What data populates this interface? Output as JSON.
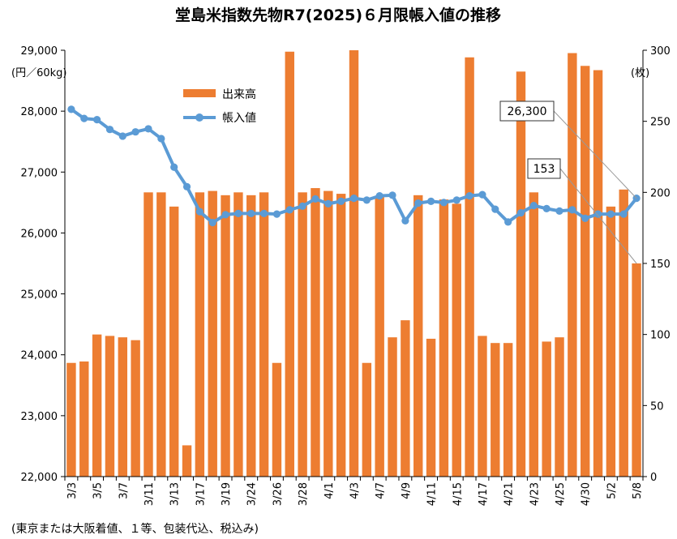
{
  "chart_data": {
    "type": "bar+line",
    "title": "堂島米指数先物R7(2025)６月限帳入値の推移",
    "left_unit": "(円／60kg)",
    "right_unit": "(枚)",
    "footnote": "(東京または大阪着値、１等、包装代込、税込み)",
    "left_axis": {
      "min": 22000,
      "max": 29000,
      "step": 1000,
      "tick_labels": [
        "22,000",
        "23,000",
        "24,000",
        "25,000",
        "26,000",
        "27,000",
        "28,000",
        "29,000"
      ]
    },
    "right_axis": {
      "min": 0,
      "max": 300,
      "step": 50,
      "tick_labels": [
        "0",
        "50",
        "100",
        "150",
        "200",
        "250",
        "300"
      ]
    },
    "x_tick_labels": [
      "3/3",
      "3/5",
      "3/7",
      "3/11",
      "3/13",
      "3/17",
      "3/19",
      "3/24",
      "3/26",
      "3/28",
      "4/1",
      "4/3",
      "4/7",
      "4/9",
      "4/11",
      "4/15",
      "4/17",
      "4/21",
      "4/23",
      "4/25",
      "4/30",
      "5/2",
      "5/8"
    ],
    "dates": [
      "3/3",
      "3/4",
      "3/5",
      "3/6",
      "3/7",
      "3/10",
      "3/11",
      "3/12",
      "3/13",
      "3/14",
      "3/17",
      "3/18",
      "3/19",
      "3/21",
      "3/24",
      "3/25",
      "3/26",
      "3/27",
      "3/28",
      "3/31",
      "4/1",
      "4/2",
      "4/3",
      "4/4",
      "4/7",
      "4/8",
      "4/9",
      "4/10",
      "4/11",
      "4/14",
      "4/15",
      "4/16",
      "4/17",
      "4/18",
      "4/21",
      "4/22",
      "4/23",
      "4/24",
      "4/25",
      "4/28",
      "4/30",
      "5/1",
      "5/2",
      "5/7",
      "5/8"
    ],
    "series": [
      {
        "name": "出来高",
        "type": "bar",
        "axis": "right",
        "color": "#ED7D31",
        "values": [
          80,
          81,
          100,
          99,
          98,
          96,
          200,
          200,
          190,
          22,
          200,
          201,
          198,
          200,
          198,
          200,
          80,
          299,
          200,
          203,
          201,
          199,
          300,
          80,
          197,
          98,
          110,
          198,
          97,
          195,
          192,
          295,
          99,
          94,
          94,
          285,
          200,
          95,
          98,
          298,
          289,
          286,
          190,
          202,
          150
        ]
      },
      {
        "name": "帳入値",
        "type": "line",
        "axis": "left",
        "color": "#5B9BD5",
        "values": [
          28030,
          27880,
          27860,
          27700,
          27590,
          27660,
          27710,
          27550,
          27080,
          26760,
          26350,
          26170,
          26300,
          26320,
          26320,
          26320,
          26310,
          26380,
          26440,
          26560,
          26480,
          26520,
          26570,
          26540,
          26610,
          26620,
          26200,
          26490,
          26520,
          26500,
          26540,
          26610,
          26630,
          26390,
          26180,
          26330,
          26450,
          26400,
          26360,
          26380,
          26240,
          26310,
          26310,
          26310,
          26570
        ]
      }
    ],
    "legend": {
      "position": "top-left inside",
      "entries": [
        {
          "label": "出来高",
          "series": "出来高"
        },
        {
          "label": "帳入値",
          "series": "帳入値"
        }
      ]
    },
    "callouts": [
      {
        "text": "26,300",
        "series": "帳入値"
      },
      {
        "text": "153",
        "series": "出来高"
      }
    ]
  }
}
